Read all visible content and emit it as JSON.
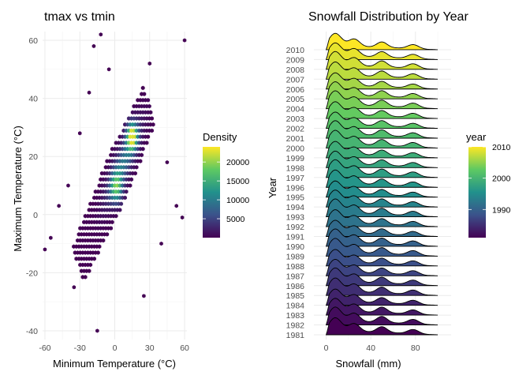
{
  "chart_data": [
    {
      "type": "hexbin",
      "title": "tmax vs tmin",
      "xlabel": "Minimum Temperature (°C)",
      "ylabel": "Maximum Temperature (°C)",
      "xlim": [
        -62,
        62
      ],
      "ylim": [
        -43,
        63
      ],
      "xticks": [
        -60,
        -30,
        0,
        30,
        60
      ],
      "yticks": [
        -40,
        -20,
        0,
        20,
        40,
        60
      ],
      "grid": true,
      "legend": {
        "title": "Density",
        "placement": "right",
        "min": 0,
        "max": 24000,
        "ticks": [
          5000,
          10000,
          15000,
          20000
        ]
      },
      "density_ridge": {
        "slope": 0.9,
        "intercept": 11,
        "peak": [
          15,
          27,
          22000
        ],
        "secondary_peak": [
          2,
          9,
          14000
        ]
      },
      "outliers": [
        [
          60,
          60
        ],
        [
          -60,
          -12
        ],
        [
          -48,
          3
        ],
        [
          -15,
          -40
        ],
        [
          53,
          3
        ],
        [
          58,
          -1
        ],
        [
          -22,
          42
        ],
        [
          -18,
          58
        ],
        [
          -12,
          62
        ],
        [
          -5,
          50
        ],
        [
          -30,
          28
        ],
        [
          -40,
          10
        ],
        [
          -55,
          -8
        ],
        [
          25,
          -28
        ],
        [
          40,
          -10
        ],
        [
          45,
          18
        ],
        [
          30,
          52
        ],
        [
          -35,
          -25
        ]
      ]
    },
    {
      "type": "ridgeline",
      "title": "Snowfall Distribution by Year",
      "xlabel": "Snowfall (mm)",
      "ylabel": "Year",
      "xlim": [
        -11,
        112
      ],
      "xticks": [
        0,
        40,
        80
      ],
      "grid": true,
      "years": [
        1981,
        1982,
        1983,
        1984,
        1985,
        1986,
        1987,
        1988,
        1989,
        1990,
        1991,
        1992,
        1993,
        1994,
        1995,
        1996,
        1997,
        1998,
        1999,
        2000,
        2001,
        2002,
        2003,
        2004,
        2005,
        2006,
        2007,
        2008,
        2009,
        2010
      ],
      "density_shape": {
        "range": [
          0,
          100
        ],
        "modes_mm": [
          8,
          25,
          50,
          78
        ],
        "relative_heights": [
          1.0,
          0.55,
          0.35,
          0.28
        ]
      },
      "legend": {
        "title": "year",
        "placement": "right",
        "min": 1981,
        "max": 2010,
        "ticks": [
          1990,
          2000,
          2010
        ]
      }
    }
  ]
}
